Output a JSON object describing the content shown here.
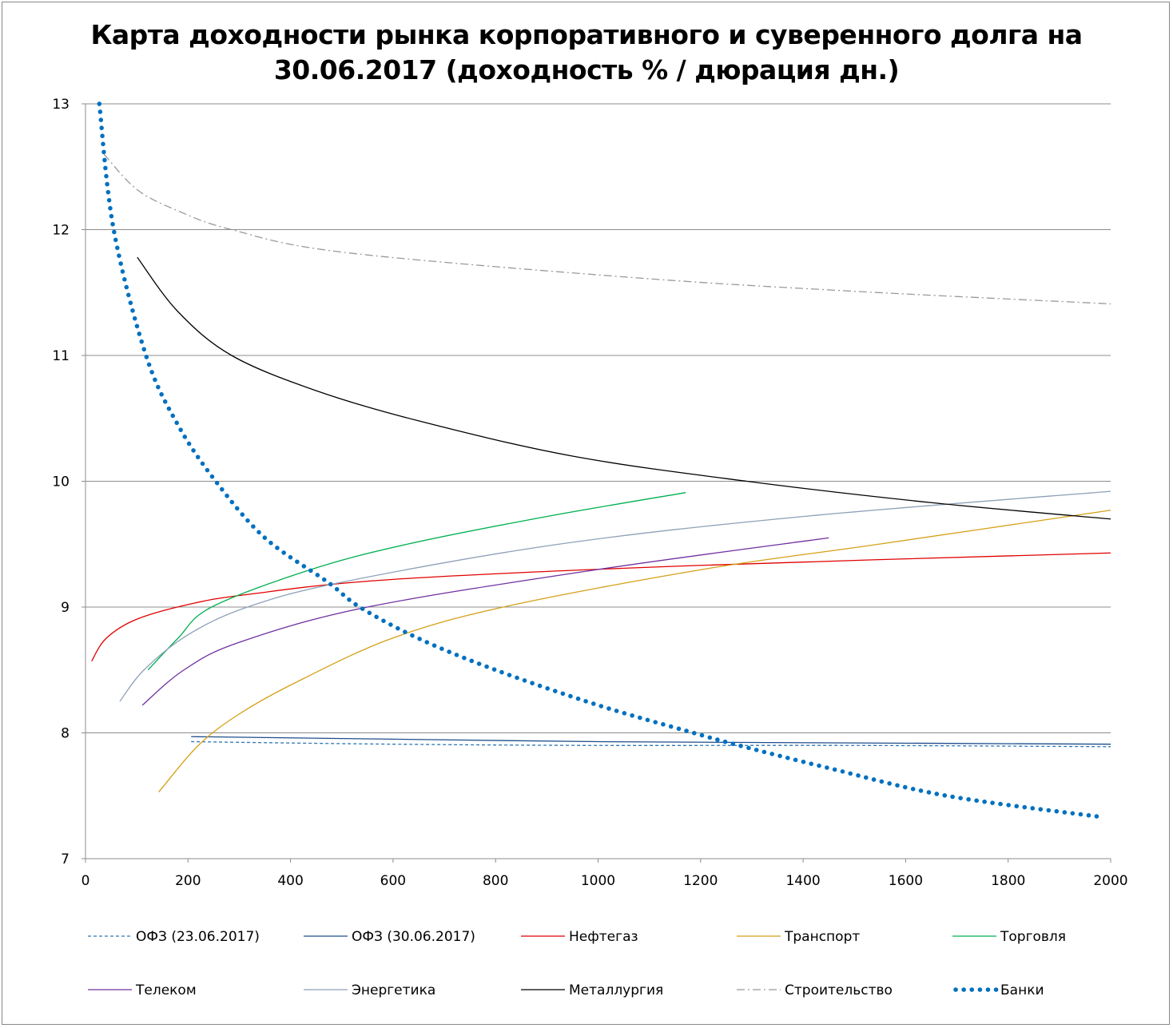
{
  "chart_data": {
    "type": "line",
    "title_line1": "Карта доходности рынка корпоративного и суверенного долга на",
    "title_line2": "30.06.2017 (доходность % / дюрация дн.)",
    "xlabel": "",
    "ylabel": "",
    "xlim": [
      0,
      2000
    ],
    "ylim": [
      7,
      13
    ],
    "xticks": [
      0,
      200,
      400,
      600,
      800,
      1000,
      1200,
      1400,
      1600,
      1800,
      2000
    ],
    "yticks": [
      7,
      8,
      9,
      10,
      11,
      12,
      13
    ],
    "grid": "horizontal",
    "legend_position": "bottom",
    "series": [
      {
        "name": "ОФЗ (23.06.2017)",
        "color": "#2e75b6",
        "style": "dashed",
        "x": [
          206,
          600,
          1000,
          1500,
          2000
        ],
        "y": [
          7.93,
          7.91,
          7.9,
          7.9,
          7.89
        ]
      },
      {
        "name": "ОФЗ (30.06.2017)",
        "color": "#1f4e8c",
        "style": "solid",
        "x": [
          206,
          600,
          1000,
          1500,
          2000
        ],
        "y": [
          7.97,
          7.95,
          7.93,
          7.92,
          7.91
        ]
      },
      {
        "name": "Нефтегаз",
        "color": "#e00000",
        "style": "solid",
        "x": [
          12,
          40,
          98,
          200,
          316,
          600,
          1190,
          2000
        ],
        "y": [
          8.57,
          8.75,
          8.9,
          9.02,
          9.1,
          9.22,
          9.33,
          9.43
        ]
      },
      {
        "name": "Транспорт",
        "color": "#d4a017",
        "style": "solid",
        "x": [
          143,
          220,
          300,
          410,
          597,
          815,
          1205,
          1548,
          2000
        ],
        "y": [
          7.53,
          7.9,
          8.15,
          8.4,
          8.75,
          9.0,
          9.3,
          9.5,
          9.77
        ]
      },
      {
        "name": "Торговля",
        "color": "#00b050",
        "style": "solid",
        "x": [
          122,
          180,
          246,
          441,
          628,
          900,
          1171
        ],
        "y": [
          8.5,
          8.75,
          9.0,
          9.3,
          9.5,
          9.72,
          9.91
        ]
      },
      {
        "name": "Телеком",
        "color": "#7030a0",
        "style": "solid",
        "x": [
          111,
          192,
          300,
          550,
          1002,
          1450
        ],
        "y": [
          8.22,
          8.5,
          8.72,
          9.0,
          9.3,
          9.55
        ]
      },
      {
        "name": "Энергетика",
        "color": "#8ea0b8",
        "style": "solid",
        "x": [
          67,
          114,
          200,
          316,
          503,
          924,
          1400,
          2000
        ],
        "y": [
          8.25,
          8.5,
          8.78,
          9.0,
          9.2,
          9.5,
          9.72,
          9.92
        ]
      },
      {
        "name": "Металлургия",
        "color": "#000000",
        "style": "solid",
        "x": [
          101,
          180,
          285,
          450,
          650,
          950,
          1290,
          1650,
          2000
        ],
        "y": [
          11.78,
          11.35,
          11.0,
          10.72,
          10.48,
          10.2,
          10.0,
          9.83,
          9.7
        ]
      },
      {
        "name": "Строительство",
        "color": "#999999",
        "style": "dashdot",
        "x": [
          36,
          100,
          180,
          285,
          503,
          1065,
          1500,
          2000
        ],
        "y": [
          12.6,
          12.32,
          12.15,
          12.0,
          11.82,
          11.62,
          11.51,
          11.41
        ]
      },
      {
        "name": "Банки",
        "color": "#0070c0",
        "style": "dotted",
        "x": [
          27,
          55,
          118,
          180,
          254,
          350,
          472,
          535,
          650,
          800,
          1000,
          1186,
          1275,
          1450,
          1680,
          1984
        ],
        "y": [
          13.0,
          12.0,
          11.0,
          10.45,
          10.0,
          9.55,
          9.2,
          9.0,
          8.75,
          8.5,
          8.22,
          8.0,
          7.9,
          7.72,
          7.5,
          7.33
        ]
      }
    ]
  }
}
